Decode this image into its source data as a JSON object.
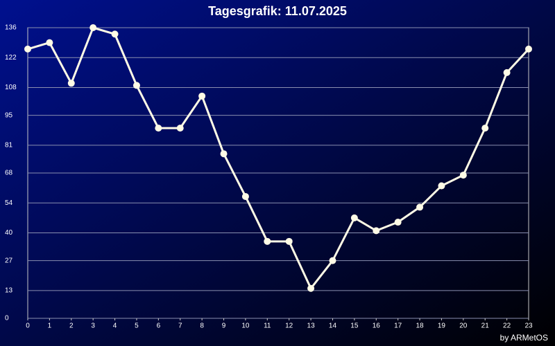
{
  "chart_data": {
    "type": "line",
    "title": "Tagesgrafik: 11.07.2025",
    "credit": "by ARMetOS",
    "x": [
      0,
      1,
      2,
      3,
      4,
      5,
      6,
      7,
      8,
      9,
      10,
      11,
      12,
      13,
      14,
      15,
      16,
      17,
      18,
      19,
      20,
      21,
      22,
      23
    ],
    "series": [
      {
        "color": "#fffbe6",
        "values": [
          126,
          129,
          110,
          136,
          133,
          109,
          89,
          89,
          104,
          77,
          57,
          36,
          36,
          14,
          27,
          47,
          41,
          45,
          52,
          62,
          67,
          89,
          115,
          126
        ]
      }
    ],
    "xlim": [
      0,
      23
    ],
    "xticks": [
      0,
      1,
      2,
      3,
      4,
      5,
      6,
      7,
      8,
      9,
      10,
      11,
      12,
      13,
      14,
      15,
      16,
      17,
      18,
      19,
      20,
      21,
      22,
      23
    ],
    "ylim": [
      0,
      136
    ],
    "yticks": [
      0,
      13,
      27,
      40,
      54,
      68,
      81,
      95,
      108,
      122,
      136
    ],
    "grid": true
  }
}
